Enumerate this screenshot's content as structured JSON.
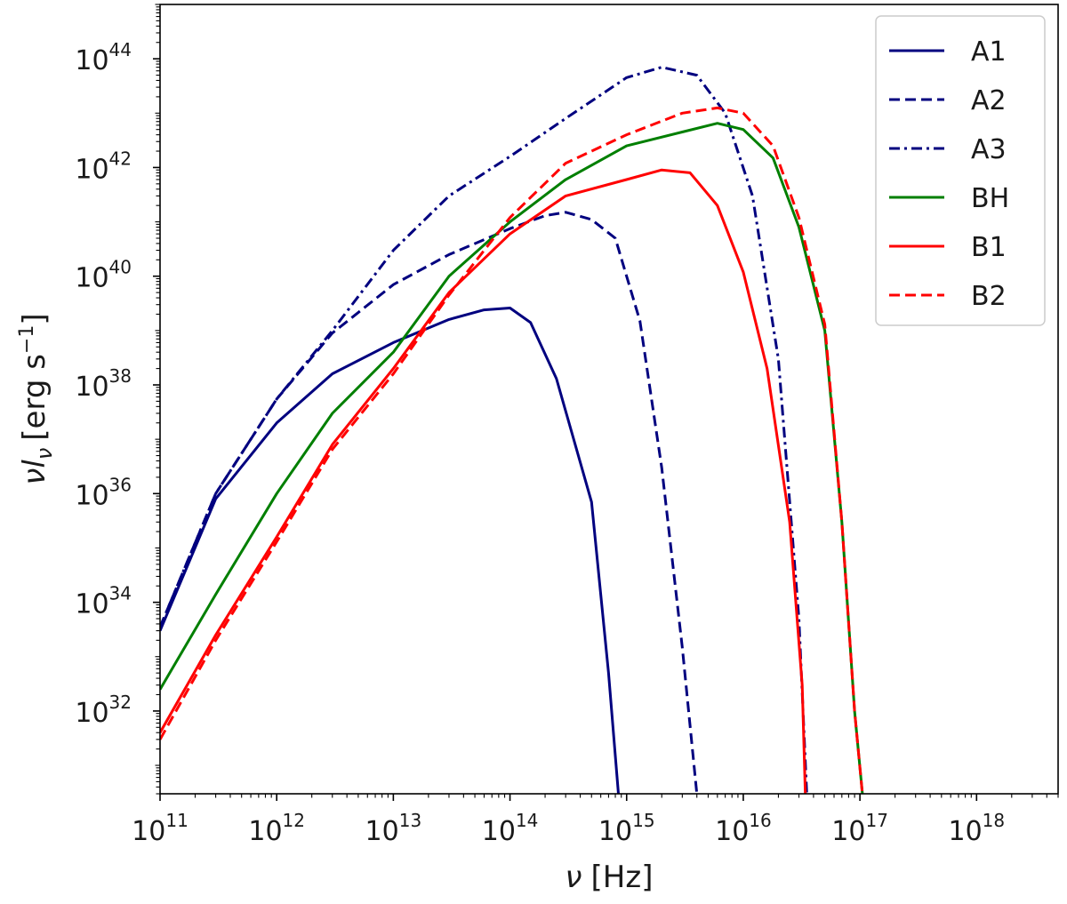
{
  "chart_data": {
    "type": "line",
    "xscale": "log",
    "yscale": "log",
    "xlim": [
      100000000000.0,
      5e+18
    ],
    "ylim": [
      3e+30,
      1e+45
    ],
    "x_ticks": [
      {
        "base": "10",
        "exp": "11",
        "value": 100000000000.0
      },
      {
        "base": "10",
        "exp": "12",
        "value": 1000000000000.0
      },
      {
        "base": "10",
        "exp": "13",
        "value": 10000000000000.0
      },
      {
        "base": "10",
        "exp": "14",
        "value": 100000000000000.0
      },
      {
        "base": "10",
        "exp": "15",
        "value": 1000000000000000.0
      },
      {
        "base": "10",
        "exp": "16",
        "value": 1e+16
      },
      {
        "base": "10",
        "exp": "17",
        "value": 1e+17
      },
      {
        "base": "10",
        "exp": "18",
        "value": 1e+18
      }
    ],
    "y_ticks": [
      {
        "base": "10",
        "exp": "32",
        "value": 1e+32
      },
      {
        "base": "10",
        "exp": "34",
        "value": 1e+34
      },
      {
        "base": "10",
        "exp": "36",
        "value": 1e+36
      },
      {
        "base": "10",
        "exp": "38",
        "value": 1e+38
      },
      {
        "base": "10",
        "exp": "40",
        "value": 1e+40
      },
      {
        "base": "10",
        "exp": "42",
        "value": 1e+42
      },
      {
        "base": "10",
        "exp": "44",
        "value": 1e+44
      }
    ],
    "xlabel": {
      "symbol": "ν",
      "unit": "[Hz]"
    },
    "ylabel": {
      "symbol": "νl",
      "sub": "ν",
      "unit_pre": "[erg s",
      "unit_exp": "−1",
      "unit_post": "]"
    },
    "grid": false,
    "legend_position": "top-right",
    "series": [
      {
        "name": "A1",
        "color": "#00007f",
        "style": "solid",
        "x": [
          100000000000.0,
          300000000000.0,
          1000000000000.0,
          3000000000000.0,
          10000000000000.0,
          30000000000000.0,
          60000000000000.0,
          100000000000000.0,
          150000000000000.0,
          250000000000000.0,
          500000000000000.0,
          700000000000000.0,
          850000000000000.0
        ],
        "y": [
          3e+33,
          8e+35,
          2e+37,
          1.6e+38,
          6e+38,
          1.6e+39,
          2.4e+39,
          2.6e+39,
          1.4e+39,
          1.3e+38,
          7e+35,
          5e+32,
          3e+30
        ]
      },
      {
        "name": "A2",
        "color": "#00007f",
        "style": "dashed",
        "x": [
          100000000000.0,
          300000000000.0,
          1000000000000.0,
          3000000000000.0,
          10000000000000.0,
          30000000000000.0,
          100000000000000.0,
          200000000000000.0,
          300000000000000.0,
          500000000000000.0,
          800000000000000.0,
          1300000000000000.0,
          2000000000000000.0,
          3000000000000000.0,
          4000000000000000.0
        ],
        "y": [
          3.5e+33,
          1e+36,
          5.5e+37,
          9e+38,
          7e+39,
          2.5e+40,
          7.5e+40,
          1.3e+41,
          1.5e+41,
          1.1e+41,
          5e+40,
          1.5e+39,
          3e+36,
          1.5e+33,
          3e+30
        ]
      },
      {
        "name": "A3",
        "color": "#00007f",
        "style": "dashdot",
        "x": [
          100000000000.0,
          300000000000.0,
          1000000000000.0,
          3000000000000.0,
          10000000000000.0,
          30000000000000.0,
          100000000000000.0,
          300000000000000.0,
          1000000000000000.0,
          2000000000000000.0,
          4000000000000000.0,
          7000000000000000.0,
          1.2e+16,
          2e+16,
          3e+16,
          3.5e+16
        ],
        "y": [
          3.5e+33,
          1e+36,
          5.5e+37,
          1e+39,
          3e+40,
          3e+41,
          1.6e+42,
          8e+42,
          4.5e+43,
          7e+43,
          5e+43,
          1e+43,
          3e+41,
          3e+38,
          5e+33,
          3e+30
        ]
      },
      {
        "name": "BH",
        "color": "#007f00",
        "style": "solid",
        "x": [
          100000000000.0,
          300000000000.0,
          1000000000000.0,
          3000000000000.0,
          10000000000000.0,
          30000000000000.0,
          100000000000000.0,
          300000000000000.0,
          1000000000000000.0,
          3000000000000000.0,
          6000000000000000.0,
          1e+16,
          1.8e+16,
          3e+16,
          5e+16,
          7e+16,
          9e+16,
          1.05e+17
        ],
        "y": [
          2.5e+32,
          1.4e+34,
          1e+36,
          3e+37,
          4e+38,
          1e+40,
          1e+41,
          6e+41,
          2.5e+42,
          4.5e+42,
          6.5e+42,
          5e+42,
          1.5e+42,
          8e+40,
          1e+39,
          3e+35,
          1e+32,
          3e+30
        ]
      },
      {
        "name": "B1",
        "color": "#ff0000",
        "style": "solid",
        "x": [
          100000000000.0,
          300000000000.0,
          1000000000000.0,
          3000000000000.0,
          10000000000000.0,
          30000000000000.0,
          100000000000000.0,
          300000000000000.0,
          1000000000000000.0,
          2000000000000000.0,
          3500000000000000.0,
          6000000000000000.0,
          1e+16,
          1.6e+16,
          2.5e+16,
          3.2e+16,
          3.4e+16
        ],
        "y": [
          4e+31,
          2.5e+33,
          1.6e+35,
          8e+36,
          2e+38,
          5e+39,
          6e+40,
          3e+41,
          6e+41,
          9e+41,
          8e+41,
          2e+41,
          1.2e+40,
          2e+38,
          3e+35,
          3e+32,
          3e+30
        ]
      },
      {
        "name": "B2",
        "color": "#ff0000",
        "style": "dashed",
        "x": [
          100000000000.0,
          300000000000.0,
          1000000000000.0,
          3000000000000.0,
          10000000000000.0,
          30000000000000.0,
          100000000000000.0,
          300000000000000.0,
          1000000000000000.0,
          3000000000000000.0,
          6000000000000000.0,
          1e+16,
          1.8e+16,
          3e+16,
          5e+16,
          7e+16,
          9e+16,
          1.05e+17
        ],
        "y": [
          3e+31,
          2e+33,
          1.3e+35,
          6.5e+36,
          1.6e+38,
          4.5e+39,
          1.2e+41,
          1.2e+42,
          4e+42,
          1e+43,
          1.25e+43,
          1e+43,
          2.5e+42,
          1.2e+41,
          1.3e+39,
          3e+35,
          1e+32,
          3e+30
        ]
      }
    ]
  }
}
